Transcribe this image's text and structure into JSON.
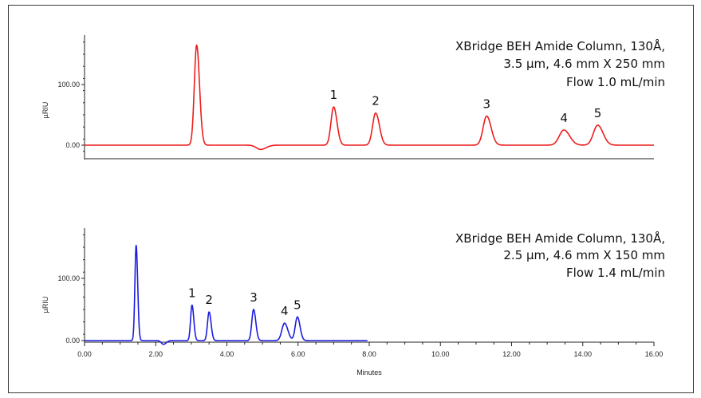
{
  "chart_data": [
    {
      "type": "line",
      "panel": "top",
      "color": "#ee1c1c",
      "caption": [
        "XBridge BEH Amide Column, 130Å,",
        "3.5 µm, 4.6 mm X 250 mm",
        "Flow 1.0 mL/min"
      ],
      "ylabel": "µRIU",
      "ylim": [
        -15,
        180
      ],
      "yticks": [
        "100.00",
        "0.00"
      ],
      "ytick_values": [
        100,
        0
      ],
      "xlim": [
        0,
        16.1
      ],
      "baseline": 0,
      "end_x": 16.0,
      "peaks": [
        {
          "rt": 3.15,
          "h": 165,
          "w": 0.065,
          "label": ""
        },
        {
          "rt": 4.95,
          "h": -7,
          "w": 0.12,
          "label": ""
        },
        {
          "rt": 7.0,
          "h": 63,
          "w": 0.075,
          "label": "1"
        },
        {
          "rt": 8.18,
          "h": 53,
          "w": 0.085,
          "label": "2"
        },
        {
          "rt": 11.3,
          "h": 48,
          "w": 0.1,
          "label": "3"
        },
        {
          "rt": 13.47,
          "h": 25,
          "w": 0.13,
          "label": "4"
        },
        {
          "rt": 14.42,
          "h": 33,
          "w": 0.12,
          "label": "5"
        }
      ]
    },
    {
      "type": "line",
      "panel": "bottom",
      "color": "#1c1ce0",
      "caption": [
        "XBridge BEH Amide Column, 130Å,",
        "2.5 µm, 4.6 mm X 150 mm",
        "Flow 1.4 mL/min"
      ],
      "ylabel": "µRIU",
      "ylim": [
        -15,
        180
      ],
      "yticks": [
        "100.00",
        "0.00"
      ],
      "ytick_values": [
        100,
        0
      ],
      "xlim": [
        0,
        16.1
      ],
      "xticks": [
        "0.00",
        "2.00",
        "4.00",
        "6.00",
        "8.00",
        "10.00",
        "12.00",
        "14.00",
        "16.00"
      ],
      "xtick_values": [
        0,
        2,
        4,
        6,
        8,
        10,
        12,
        14,
        16
      ],
      "xlabel": "Minutes",
      "baseline": 0,
      "end_x": 7.95,
      "peaks": [
        {
          "rt": 1.45,
          "h": 153,
          "w": 0.035,
          "label": ""
        },
        {
          "rt": 2.22,
          "h": -6,
          "w": 0.06,
          "label": ""
        },
        {
          "rt": 3.02,
          "h": 57,
          "w": 0.04,
          "label": "1"
        },
        {
          "rt": 3.5,
          "h": 46,
          "w": 0.045,
          "label": "2"
        },
        {
          "rt": 4.75,
          "h": 50,
          "w": 0.05,
          "label": "3"
        },
        {
          "rt": 5.62,
          "h": 28,
          "w": 0.075,
          "label": "4"
        },
        {
          "rt": 5.98,
          "h": 38,
          "w": 0.06,
          "label": "5"
        }
      ]
    }
  ]
}
